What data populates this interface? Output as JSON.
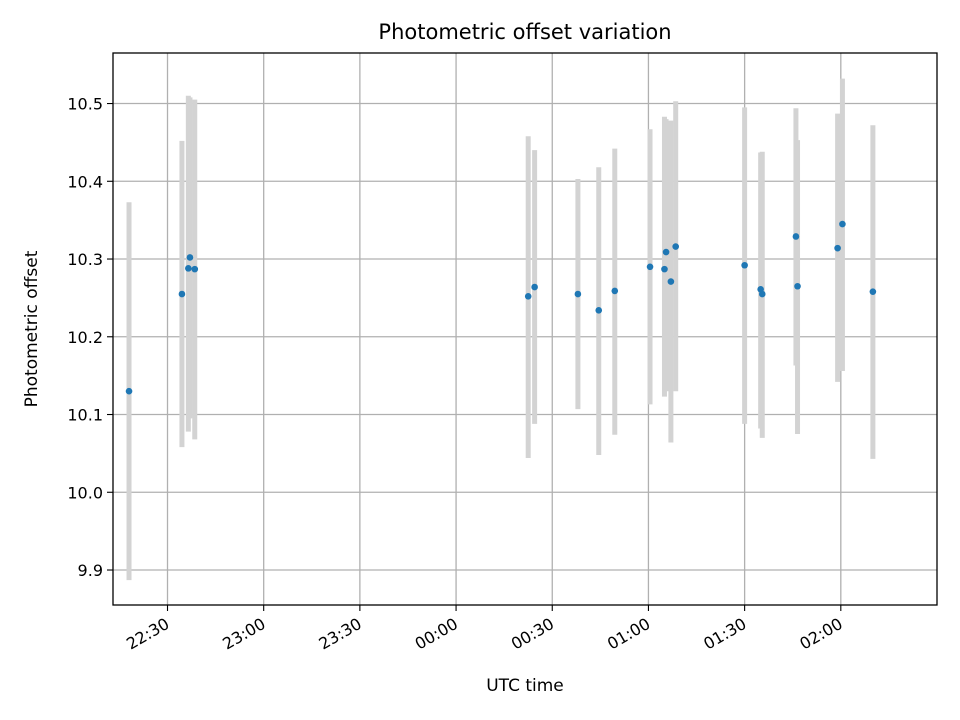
{
  "chart_data": {
    "type": "scatter",
    "title": "Photometric offset variation",
    "xlabel": "UTC time",
    "ylabel": "Photometric offset",
    "grid": true,
    "xlim": [
      "22:13",
      "02:30"
    ],
    "ylim": [
      9.855,
      10.565
    ],
    "x_ticks": [
      "22:30",
      "23:00",
      "23:30",
      "00:00",
      "00:30",
      "01:00",
      "01:30",
      "02:00"
    ],
    "y_ticks": [
      "9.9",
      "10.0",
      "10.1",
      "10.2",
      "10.3",
      "10.4",
      "10.5"
    ],
    "colors": {
      "points": "#1f77b4",
      "error_bars": "#d3d3d3"
    },
    "points": [
      {
        "x": "22:18",
        "y": 10.13,
        "yerr_low": 9.887,
        "yerr_high": 10.373
      },
      {
        "x": "22:34:30",
        "y": 10.255,
        "yerr_low": 10.058,
        "yerr_high": 10.452
      },
      {
        "x": "22:36:30",
        "y": 10.288,
        "yerr_low": 10.078,
        "yerr_high": 10.51
      },
      {
        "x": "22:37:00",
        "y": 10.302,
        "yerr_low": 10.095,
        "yerr_high": 10.508
      },
      {
        "x": "22:38:30",
        "y": 10.287,
        "yerr_low": 10.068,
        "yerr_high": 10.505
      },
      {
        "x": "00:22:30",
        "y": 10.252,
        "yerr_low": 10.044,
        "yerr_high": 10.458
      },
      {
        "x": "00:24:30",
        "y": 10.264,
        "yerr_low": 10.088,
        "yerr_high": 10.44
      },
      {
        "x": "00:38",
        "y": 10.255,
        "yerr_low": 10.107,
        "yerr_high": 10.403
      },
      {
        "x": "00:44:30",
        "y": 10.234,
        "yerr_low": 10.048,
        "yerr_high": 10.418
      },
      {
        "x": "00:49:30",
        "y": 10.259,
        "yerr_low": 10.074,
        "yerr_high": 10.442
      },
      {
        "x": "01:00:30",
        "y": 10.29,
        "yerr_low": 10.113,
        "yerr_high": 10.467
      },
      {
        "x": "01:05",
        "y": 10.287,
        "yerr_low": 10.123,
        "yerr_high": 10.483
      },
      {
        "x": "01:05:30",
        "y": 10.309,
        "yerr_low": 10.13,
        "yerr_high": 10.48
      },
      {
        "x": "01:07",
        "y": 10.271,
        "yerr_low": 10.064,
        "yerr_high": 10.478
      },
      {
        "x": "01:08:30",
        "y": 10.316,
        "yerr_low": 10.13,
        "yerr_high": 10.503
      },
      {
        "x": "01:30",
        "y": 10.292,
        "yerr_low": 10.088,
        "yerr_high": 10.495
      },
      {
        "x": "01:35",
        "y": 10.261,
        "yerr_low": 10.082,
        "yerr_high": 10.437
      },
      {
        "x": "01:35:30",
        "y": 10.255,
        "yerr_low": 10.07,
        "yerr_high": 10.438
      },
      {
        "x": "01:46",
        "y": 10.329,
        "yerr_low": 10.163,
        "yerr_high": 10.494
      },
      {
        "x": "01:46:30",
        "y": 10.265,
        "yerr_low": 10.075,
        "yerr_high": 10.453
      },
      {
        "x": "01:59",
        "y": 10.314,
        "yerr_low": 10.142,
        "yerr_high": 10.487
      },
      {
        "x": "02:00:30",
        "y": 10.345,
        "yerr_low": 10.156,
        "yerr_high": 10.532
      },
      {
        "x": "02:10",
        "y": 10.258,
        "yerr_low": 10.043,
        "yerr_high": 10.472
      }
    ]
  }
}
